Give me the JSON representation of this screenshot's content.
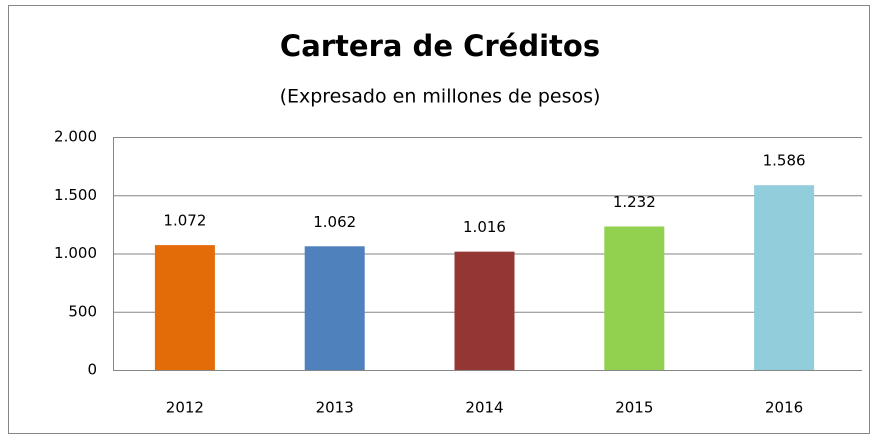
{
  "chart_data": {
    "type": "bar",
    "title": "Cartera de Créditos",
    "subtitle": "(Expresado en millones de pesos)",
    "categories": [
      "2012",
      "2013",
      "2014",
      "2015",
      "2016"
    ],
    "values": [
      1072,
      1062,
      1016,
      1232,
      1586
    ],
    "value_labels": [
      "1.072",
      "1.062",
      "1.016",
      "1.232",
      "1.586"
    ],
    "colors": [
      "#e36c09",
      "#4f81bd",
      "#943634",
      "#92d050",
      "#92cddc"
    ],
    "ylim": [
      0,
      2000
    ],
    "yticks": [
      0,
      500,
      {
        "value": 1000,
        "label": "1.000"
      },
      {
        "value": 1500,
        "label": "1.500"
      },
      {
        "value": 2000,
        "label": "2.000"
      }
    ],
    "grid": true
  }
}
